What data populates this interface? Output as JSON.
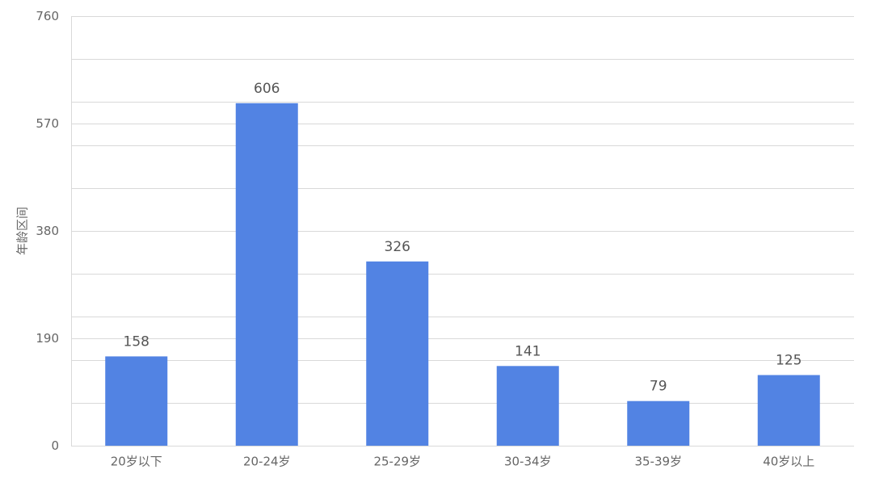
{
  "chart_data": {
    "type": "bar",
    "y_label": "年龄区间",
    "categories": [
      "20岁以下",
      "20-24岁",
      "25-29岁",
      "30-34岁",
      "35-39岁",
      "40岁以上"
    ],
    "values": [
      158,
      606,
      326,
      141,
      79,
      125
    ],
    "color": "#5283e3",
    "ylim": [
      0,
      760
    ],
    "yticks": [
      0,
      190,
      380,
      570,
      760
    ],
    "minor_yticks": [
      76,
      152,
      228,
      304,
      456,
      532,
      608,
      684
    ],
    "grid": true
  }
}
